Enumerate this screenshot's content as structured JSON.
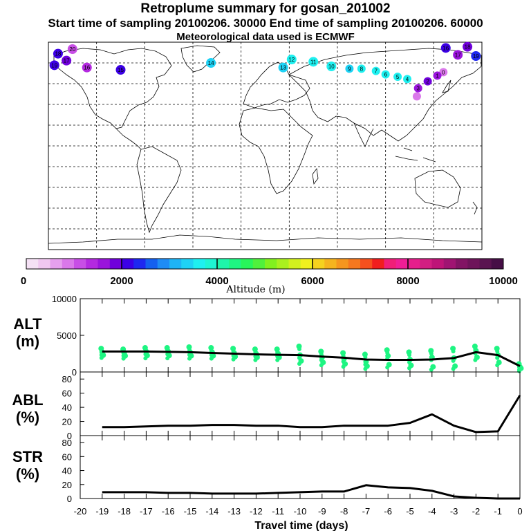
{
  "titles": {
    "main": "Retroplume summary for gosan_201002",
    "sampling": "Start time of sampling 20100206. 30000     End time of sampling 20100206. 60000",
    "met": "Meteorological data used is ECMWF"
  },
  "colorbar": {
    "xlabel": "Altitude (m)",
    "ticks": [
      "0",
      "2000",
      "4000",
      "6000",
      "8000",
      "10000"
    ],
    "colors": [
      "#f5e1f5",
      "#f0c8f0",
      "#e6a0ee",
      "#da78ea",
      "#c84ee6",
      "#b42ae0",
      "#9a14dc",
      "#7000dc",
      "#3c00e6",
      "#1e28f0",
      "#1460f0",
      "#1e8cf5",
      "#1eb4f5",
      "#1ed2f5",
      "#1ef0f0",
      "#1ef5d2",
      "#1ef5aa",
      "#1ef582",
      "#28f55a",
      "#50f03c",
      "#82f01e",
      "#aaf01e",
      "#d2f01e",
      "#f0f01e",
      "#f5d21e",
      "#f5b41e",
      "#f5961e",
      "#f5781e",
      "#f5501e",
      "#f01e1e",
      "#f01e78",
      "#f01e96",
      "#e61e8c",
      "#d21e82",
      "#be1478",
      "#a01472",
      "#821464",
      "#6e145a",
      "#5a1450",
      "#460f46"
    ]
  },
  "map": {
    "points": [
      {
        "lon": 148,
        "lat": 54,
        "alt": 800,
        "label": "0"
      },
      {
        "lon": 143,
        "lat": 51,
        "alt": 1500,
        "label": "1"
      },
      {
        "lon": 135,
        "lat": 46,
        "alt": 1900,
        "label": "2"
      },
      {
        "lon": 127,
        "lat": 40,
        "alt": 1600,
        "label": "3"
      },
      {
        "lon": 126,
        "lat": 33,
        "alt": 900,
        "label": ""
      },
      {
        "lon": 118,
        "lat": 48,
        "alt": 3500,
        "label": "4"
      },
      {
        "lon": 110,
        "lat": 50,
        "alt": 3600,
        "label": "5"
      },
      {
        "lon": 100,
        "lat": 52,
        "alt": 3700,
        "label": "6"
      },
      {
        "lon": 92,
        "lat": 55,
        "alt": 3600,
        "label": "7"
      },
      {
        "lon": 80,
        "lat": 57,
        "alt": 3500,
        "label": "8"
      },
      {
        "lon": 70,
        "lat": 57,
        "alt": 3400,
        "label": "9"
      },
      {
        "lon": 55,
        "lat": 59,
        "alt": 3600,
        "label": "10"
      },
      {
        "lon": 40,
        "lat": 63,
        "alt": 3500,
        "label": "11"
      },
      {
        "lon": 22,
        "lat": 65,
        "alt": 3500,
        "label": "12"
      },
      {
        "lon": 15,
        "lat": 58,
        "alt": 3300,
        "label": "13"
      },
      {
        "lon": -45,
        "lat": 62,
        "alt": 3400,
        "label": "14"
      },
      {
        "lon": -120,
        "lat": 56,
        "alt": 2200,
        "label": "15"
      },
      {
        "lon": -148,
        "lat": 58,
        "alt": 1300,
        "label": "16"
      },
      {
        "lon": -165,
        "lat": 64,
        "alt": 1800,
        "label": "17"
      },
      {
        "lon": -172,
        "lat": 70,
        "alt": 2000,
        "label": "18"
      },
      {
        "lon": -175,
        "lat": 60,
        "alt": 2200,
        "label": "19"
      },
      {
        "lon": -160,
        "lat": 74,
        "alt": 1200,
        "label": "20"
      },
      {
        "lon": 150,
        "lat": 75,
        "alt": 2100,
        "label": "16"
      },
      {
        "lon": 168,
        "lat": 76,
        "alt": 1900,
        "label": "18"
      },
      {
        "lon": 175,
        "lat": 68,
        "alt": 2300,
        "label": "19"
      },
      {
        "lon": 160,
        "lat": 69,
        "alt": 1700,
        "label": "17"
      }
    ]
  },
  "chart_data": [
    {
      "type": "scatter",
      "title": "ALT (m)",
      "ylabel": "ALT (m)",
      "ylim": [
        0,
        10000
      ],
      "yticks": [
        "10000",
        "5000",
        "0"
      ],
      "x": [
        -19,
        -18,
        -17,
        -16,
        -15,
        -14,
        -13,
        -12,
        -11,
        -10,
        -9,
        -8,
        -7,
        -6,
        -5,
        -4,
        -3,
        -2,
        -1,
        0
      ],
      "line_values": [
        2800,
        2800,
        2800,
        2750,
        2700,
        2600,
        2500,
        2400,
        2350,
        2300,
        2100,
        1950,
        1700,
        1650,
        1650,
        1700,
        1900,
        2700,
        2300,
        800
      ],
      "scatter_spread": [
        [
          3200,
          2700,
          2300
        ],
        [
          3100,
          2600,
          2200
        ],
        [
          3300,
          2800,
          2250
        ],
        [
          3300,
          2800,
          2250
        ],
        [
          3400,
          2700,
          2200
        ],
        [
          3300,
          2700,
          2200
        ],
        [
          3200,
          2600,
          2100
        ],
        [
          3100,
          2500,
          2000
        ],
        [
          3100,
          2500,
          2000
        ],
        [
          3500,
          2300,
          1500
        ],
        [
          2800,
          2000,
          1300
        ],
        [
          2600,
          1800,
          1100
        ],
        [
          2400,
          1400,
          800
        ],
        [
          3000,
          2200,
          1000
        ],
        [
          2700,
          1700,
          900
        ],
        [
          2900,
          2000,
          700
        ],
        [
          3200,
          1900,
          800
        ],
        [
          3500,
          2900,
          2000
        ],
        [
          3200,
          2300,
          1300
        ],
        [
          1100,
          700,
          500
        ]
      ]
    },
    {
      "type": "line",
      "title": "ABL (%)",
      "ylabel": "ABL (%)",
      "ylim": [
        0,
        90
      ],
      "yticks": [
        "80",
        "60",
        "40",
        "20",
        "0"
      ],
      "x": [
        -19,
        -18,
        -17,
        -16,
        -15,
        -14,
        -13,
        -12,
        -11,
        -10,
        -9,
        -8,
        -7,
        -6,
        -5,
        -4,
        -3,
        -2,
        -1,
        0
      ],
      "values": [
        12,
        12,
        13,
        14,
        14,
        15,
        15,
        14,
        14,
        12,
        12,
        14,
        14,
        14,
        18,
        30,
        14,
        5,
        6,
        57
      ]
    },
    {
      "type": "line",
      "title": "STR (%)",
      "ylabel": "STR (%)",
      "ylim": [
        0,
        90
      ],
      "yticks": [
        "80",
        "60",
        "40",
        "20",
        "0"
      ],
      "x": [
        -19,
        -18,
        -17,
        -16,
        -15,
        -14,
        -13,
        -12,
        -11,
        -10,
        -9,
        -8,
        -7,
        -6,
        -5,
        -4,
        -3,
        -2,
        -1,
        0
      ],
      "values": [
        9,
        9,
        9,
        8,
        8,
        7,
        7,
        7,
        8,
        9,
        10,
        10,
        19,
        16,
        15,
        11,
        3,
        1,
        0,
        0
      ],
      "xlabel": "Travel time (days)",
      "xticks": [
        "-20",
        "-19",
        "-18",
        "-17",
        "-16",
        "-15",
        "-14",
        "-13",
        "-12",
        "-11",
        "-10",
        "-9",
        "-8",
        "-7",
        "-6",
        "-5",
        "-4",
        "-3",
        "-2",
        "-1",
        "0"
      ]
    }
  ],
  "panel_labels": {
    "alt": [
      "ALT",
      "(m)"
    ],
    "abl": [
      "ABL",
      "(%)"
    ],
    "str": [
      "STR",
      "(%)"
    ]
  }
}
